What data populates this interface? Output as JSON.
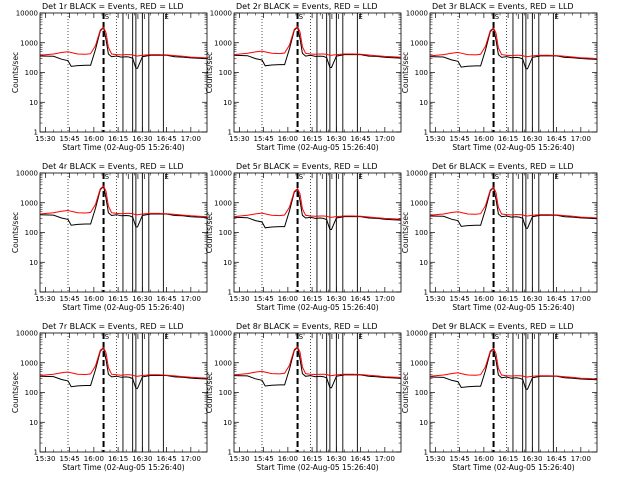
{
  "legend_text": {
    "black_series": "Events",
    "red_series": "LLD"
  },
  "colors": {
    "events": "#000000",
    "lld": "#ff0000",
    "axes": "#000000",
    "background": "#ffffff"
  },
  "chart_data": [
    {
      "type": "line",
      "title": "Det 1r  BLACK = Events, RED = LLD",
      "xlabel": "Start Time (02-Aug-05 15:26:40)",
      "ylabel": "Counts/sec"
    },
    {
      "type": "line",
      "title": "Det 2r  BLACK = Events, RED = LLD",
      "xlabel": "Start Time (02-Aug-05 15:26:40)",
      "ylabel": "Counts/sec"
    },
    {
      "type": "line",
      "title": "Det 3r  BLACK = Events, RED = LLD",
      "xlabel": "Start Time (02-Aug-05 15:26:40)",
      "ylabel": "Counts/sec"
    },
    {
      "type": "line",
      "title": "Det 4r  BLACK = Events, RED = LLD",
      "xlabel": "Start Time (02-Aug-05 15:26:40)",
      "ylabel": "Counts/sec"
    },
    {
      "type": "line",
      "title": "Det 5r  BLACK = Events, RED = LLD",
      "xlabel": "Start Time (02-Aug-05 15:26:40)",
      "ylabel": "Counts/sec"
    },
    {
      "type": "line",
      "title": "Det 6r  BLACK = Events, RED = LLD",
      "xlabel": "Start Time (02-Aug-05 15:26:40)",
      "ylabel": "Counts/sec"
    },
    {
      "type": "line",
      "title": "Det 7r  BLACK = Events, RED = LLD",
      "xlabel": "Start Time (02-Aug-05 15:26:40)",
      "ylabel": "Counts/sec"
    },
    {
      "type": "line",
      "title": "Det 8r  BLACK = Events, RED = LLD",
      "xlabel": "Start Time (02-Aug-05 15:26:40)",
      "ylabel": "Counts/sec"
    },
    {
      "type": "line",
      "title": "Det 9r  BLACK = Events, RED = LLD",
      "xlabel": "Start Time (02-Aug-05 15:26:40)",
      "ylabel": "Counts/sec"
    }
  ],
  "shared_axes": {
    "x_tick_labels": [
      "15:30",
      "15:45",
      "16:00",
      "16:15",
      "16:30",
      "16:45",
      "17:00"
    ],
    "x_tick_minutes": [
      930,
      945,
      960,
      975,
      990,
      1005,
      1020
    ],
    "x_range_minutes": [
      926.67,
      1030
    ],
    "y_scale": "log",
    "y_range": [
      1,
      10000
    ],
    "y_tick_labels": [
      "1",
      "10",
      "100",
      "1000",
      "10000"
    ],
    "y_tick_values": [
      1,
      10,
      100,
      1000,
      10000
    ]
  },
  "markers": {
    "dotted_vertical_lines_minutes": [
      944,
      974
    ],
    "dashed_vertical_line_minutes": 966,
    "solid_vertical_lines_minutes": [
      978,
      984,
      986,
      990,
      994,
      1003
    ],
    "top_marker_glyphs": [
      "S",
      "I",
      "I",
      "I",
      "E"
    ]
  },
  "series_template": {
    "x_minutes": [
      926.67,
      935,
      940,
      944,
      946,
      950,
      955,
      958,
      961,
      964,
      966,
      967.5,
      969,
      971,
      974,
      977,
      980,
      982,
      984,
      986,
      987,
      990,
      995,
      1000,
      1005,
      1010,
      1015,
      1020,
      1025,
      1030
    ],
    "events": [
      360,
      350,
      280,
      250,
      160,
      170,
      175,
      175,
      600,
      2500,
      3200,
      1300,
      420,
      340,
      360,
      330,
      340,
      330,
      300,
      140,
      140,
      340,
      380,
      380,
      380,
      340,
      330,
      310,
      300,
      290
    ],
    "lld": [
      380,
      420,
      470,
      500,
      470,
      420,
      410,
      430,
      800,
      2700,
      3300,
      2200,
      700,
      420,
      400,
      390,
      400,
      400,
      390,
      360,
      360,
      380,
      400,
      400,
      390,
      370,
      350,
      330,
      320,
      310
    ]
  }
}
